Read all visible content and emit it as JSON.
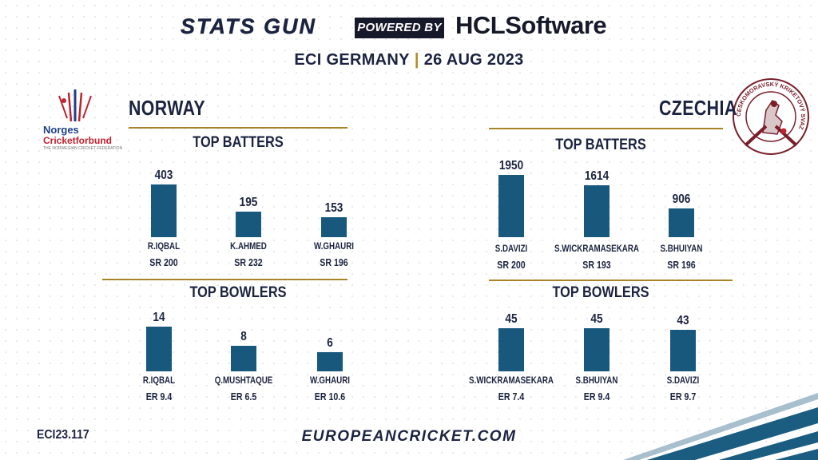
{
  "header": {
    "brand": "STATS GUN",
    "powered_by": "POWERED BY",
    "sponsor": "HCLSoftware",
    "event": "ECI GERMANY",
    "separator": "|",
    "date": "26 AUG 2023"
  },
  "logos": {
    "norway_line1": "Norges",
    "norway_line2": "Cricketforbund",
    "norway_tagline": "THE NORWEGIAN CRICKET FEDERATION",
    "czechia_ring_text": "ČESKOMORAVSKÝ KRIKETOVÝ SVAZ"
  },
  "teams": {
    "left": {
      "name": "NORWAY",
      "batters_title": "TOP BATTERS",
      "bowlers_title": "TOP BOWLERS"
    },
    "right": {
      "name": "CZECHIA",
      "batters_title": "TOP BATTERS",
      "bowlers_title": "TOP BOWLERS"
    }
  },
  "chart_data": [
    {
      "type": "bar",
      "team": "NORWAY",
      "title": "TOP BATTERS",
      "categories": [
        "R.IQBAL",
        "K.AHMED",
        "W.GHAURI"
      ],
      "values": [
        403,
        195,
        153
      ],
      "sublabels": [
        "SR 200",
        "SR 232",
        "SR 196"
      ]
    },
    {
      "type": "bar",
      "team": "NORWAY",
      "title": "TOP BOWLERS",
      "categories": [
        "R.IQBAL",
        "Q.MUSHTAQUE",
        "W.GHAURI"
      ],
      "values": [
        14,
        8,
        6
      ],
      "sublabels": [
        "ER 9.4",
        "ER 6.5",
        "ER 10.6"
      ]
    },
    {
      "type": "bar",
      "team": "CZECHIA",
      "title": "TOP BATTERS",
      "categories": [
        "S.DAVIZI",
        "S.WICKRAMASEKARA",
        "S.BHUIYAN"
      ],
      "values": [
        1950,
        1614,
        906
      ],
      "sublabels": [
        "SR 200",
        "SR 193",
        "SR 196"
      ]
    },
    {
      "type": "bar",
      "team": "CZECHIA",
      "title": "TOP BOWLERS",
      "categories": [
        "S.WICKRAMASEKARA",
        "S.BHUIYAN",
        "S.DAVIZI"
      ],
      "values": [
        45,
        45,
        43
      ],
      "sublabels": [
        "ER 7.4",
        "ER 9.4",
        "ER 9.7"
      ]
    }
  ],
  "footer": {
    "code": "ECI23.117",
    "url": "EUROPEANCRICKET.COM"
  },
  "colors": {
    "bar": "#18587d",
    "rule": "#a88428",
    "text": "#1b2340"
  }
}
